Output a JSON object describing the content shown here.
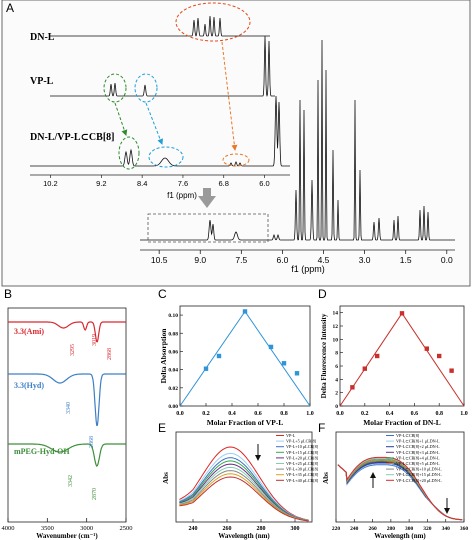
{
  "panels": {
    "A": "A",
    "B": "B",
    "C": "C",
    "D": "D",
    "E": "E",
    "F": "F"
  },
  "colors": {
    "black": "#111111",
    "red": "#d62728",
    "blue": "#3a7fc1",
    "green": "#2e8b2e",
    "orange": "#e8782a",
    "cyan": "#1f9ed8",
    "gray": "#8a8a8a",
    "ami": "#d9282f",
    "hyd": "#3d7fc6",
    "peg": "#3f8f3a",
    "vpl_pts": "#2f94d8",
    "dnl_pts": "#c9302c"
  },
  "chart_data": [
    {
      "panel": "A",
      "type": "line",
      "spectra": [
        {
          "label": "DN-L"
        },
        {
          "label": "VP-L"
        },
        {
          "label": "DN-L/VP-L⊂CB[8]"
        }
      ],
      "inset": {
        "xticks": [
          "10.2",
          "9.2",
          "8.4",
          "7.6",
          "6.8",
          "6.0"
        ],
        "xlabel": "f1 (ppm)"
      },
      "main": {
        "xticks": [
          "10.5",
          "9.0",
          "7.5",
          "6.0",
          "4.5",
          "3.0",
          "1.5",
          "0.0"
        ],
        "xlabel": "f1 (ppm)",
        "xlim": [
          11.2,
          -0.3
        ]
      }
    },
    {
      "panel": "B",
      "type": "line",
      "xlabel": "Wavenumber (cm⁻¹)",
      "xticks": [
        "4000",
        "3500",
        "3000",
        "2500"
      ],
      "xlim": [
        4000,
        2500
      ],
      "series": [
        {
          "name": "3.3(Ami)",
          "annotations": [
            "3295",
            "3019",
            "2868"
          ]
        },
        {
          "name": "3.3(Hyd)",
          "annotations": [
            "3340",
            "2868"
          ]
        },
        {
          "name": "mPEG-Hyd-OH",
          "annotations": [
            "3342",
            "2870"
          ]
        }
      ]
    },
    {
      "panel": "C",
      "type": "scatter",
      "xlabel": "Molar Fraction of VP-L",
      "ylabel": "Delta Absorption",
      "xlim": [
        0.0,
        1.0
      ],
      "ylim": [
        0.0,
        0.11
      ],
      "xticks": [
        "0.0",
        "0.2",
        "0.4",
        "0.6",
        "0.8",
        "1.0"
      ],
      "yticks": [
        "0.00",
        "0.02",
        "0.04",
        "0.06",
        "0.08",
        "0.10"
      ],
      "x": [
        0.2,
        0.3,
        0.5,
        0.7,
        0.8,
        0.9
      ],
      "y": [
        0.041,
        0.055,
        0.104,
        0.065,
        0.047,
        0.036
      ],
      "fit": {
        "x": [
          0.0,
          0.5,
          1.0
        ],
        "y": [
          0.0,
          0.104,
          0.0
        ]
      }
    },
    {
      "panel": "D",
      "type": "scatter",
      "xlabel": "Molar Fraction of DN-L",
      "ylabel": "Delta Fluorescence Intensity",
      "xlim": [
        0.0,
        1.0
      ],
      "ylim": [
        0,
        15
      ],
      "xticks": [
        "0.0",
        "0.2",
        "0.4",
        "0.6",
        "0.8",
        "1.0"
      ],
      "yticks": [
        "0",
        "2",
        "4",
        "6",
        "8",
        "10",
        "12",
        "14"
      ],
      "x": [
        0.1,
        0.2,
        0.3,
        0.5,
        0.7,
        0.8,
        0.9
      ],
      "y": [
        2.8,
        5.6,
        7.5,
        13.9,
        8.6,
        7.5,
        5.3
      ],
      "fit": {
        "x": [
          0.0,
          0.5,
          1.0
        ],
        "y": [
          0.0,
          13.9,
          0.0
        ]
      }
    },
    {
      "panel": "E",
      "type": "line",
      "xlabel": "Wavelength (nm)",
      "ylabel": "Abs",
      "xlim": [
        230,
        310
      ],
      "xticks": [
        "240",
        "260",
        "280",
        "300"
      ],
      "series": [
        {
          "name": "VP-L",
          "color": "#e02525",
          "peak": 0.35
        },
        {
          "name": "VP-L+5 μLCB[8]",
          "color": "#9ad0f0",
          "peak": 0.32
        },
        {
          "name": "VP-L+10 μLCB[8]",
          "color": "#3f6fc8",
          "peak": 0.3
        },
        {
          "name": "VP-L+15 μLCB[8]",
          "color": "#38a84b",
          "peak": 0.285
        },
        {
          "name": "VP-L+20 μLCB[8]",
          "color": "#6a2e8a",
          "peak": 0.27
        },
        {
          "name": "VP-L+25 μLCB[8]",
          "color": "#7fd0b0",
          "peak": 0.255
        },
        {
          "name": "VP-L+30 μLCB[8]",
          "color": "#888888",
          "peak": 0.24
        },
        {
          "name": "VP-L+35 μLCB[8]",
          "color": "#e0a020",
          "peak": 0.225
        },
        {
          "name": "VP-L+40 μLCB[8]",
          "color": "#c03030",
          "peak": 0.21
        }
      ]
    },
    {
      "panel": "F",
      "type": "line",
      "xlabel": "Wavelength (nm)",
      "ylabel": "Abs",
      "xlim": [
        220,
        360
      ],
      "xticks": [
        "220",
        "240",
        "260",
        "280",
        "300",
        "320",
        "340",
        "360"
      ],
      "series": [
        {
          "name": "VP-L⊂CB[8]",
          "color": "#3f6fc8"
        },
        {
          "name": "VP-L⊂CB[8]+1 μLDN-L",
          "color": "#9ad0f0"
        },
        {
          "name": "VP-L⊂CB[8]+2 μLDN-L",
          "color": "#1f3f9f"
        },
        {
          "name": "VP-L⊂CB[8]+3 μLDN-L",
          "color": "#6a2e8a"
        },
        {
          "name": "VP-L⊂CB[8]+4 μLDN-L",
          "color": "#38a84b"
        },
        {
          "name": "VP-L⊂CB[8]+5 μLDN-L",
          "color": "#d08030"
        },
        {
          "name": "VP-L⊂CB[8]+10 μLDN-L",
          "color": "#888888"
        },
        {
          "name": "VP-L⊂CB[8]+15 μLDN-L",
          "color": "#7fd0b0"
        },
        {
          "name": "VP-L⊂CB[8]+20 μLDN-L",
          "color": "#e02525"
        }
      ]
    }
  ]
}
